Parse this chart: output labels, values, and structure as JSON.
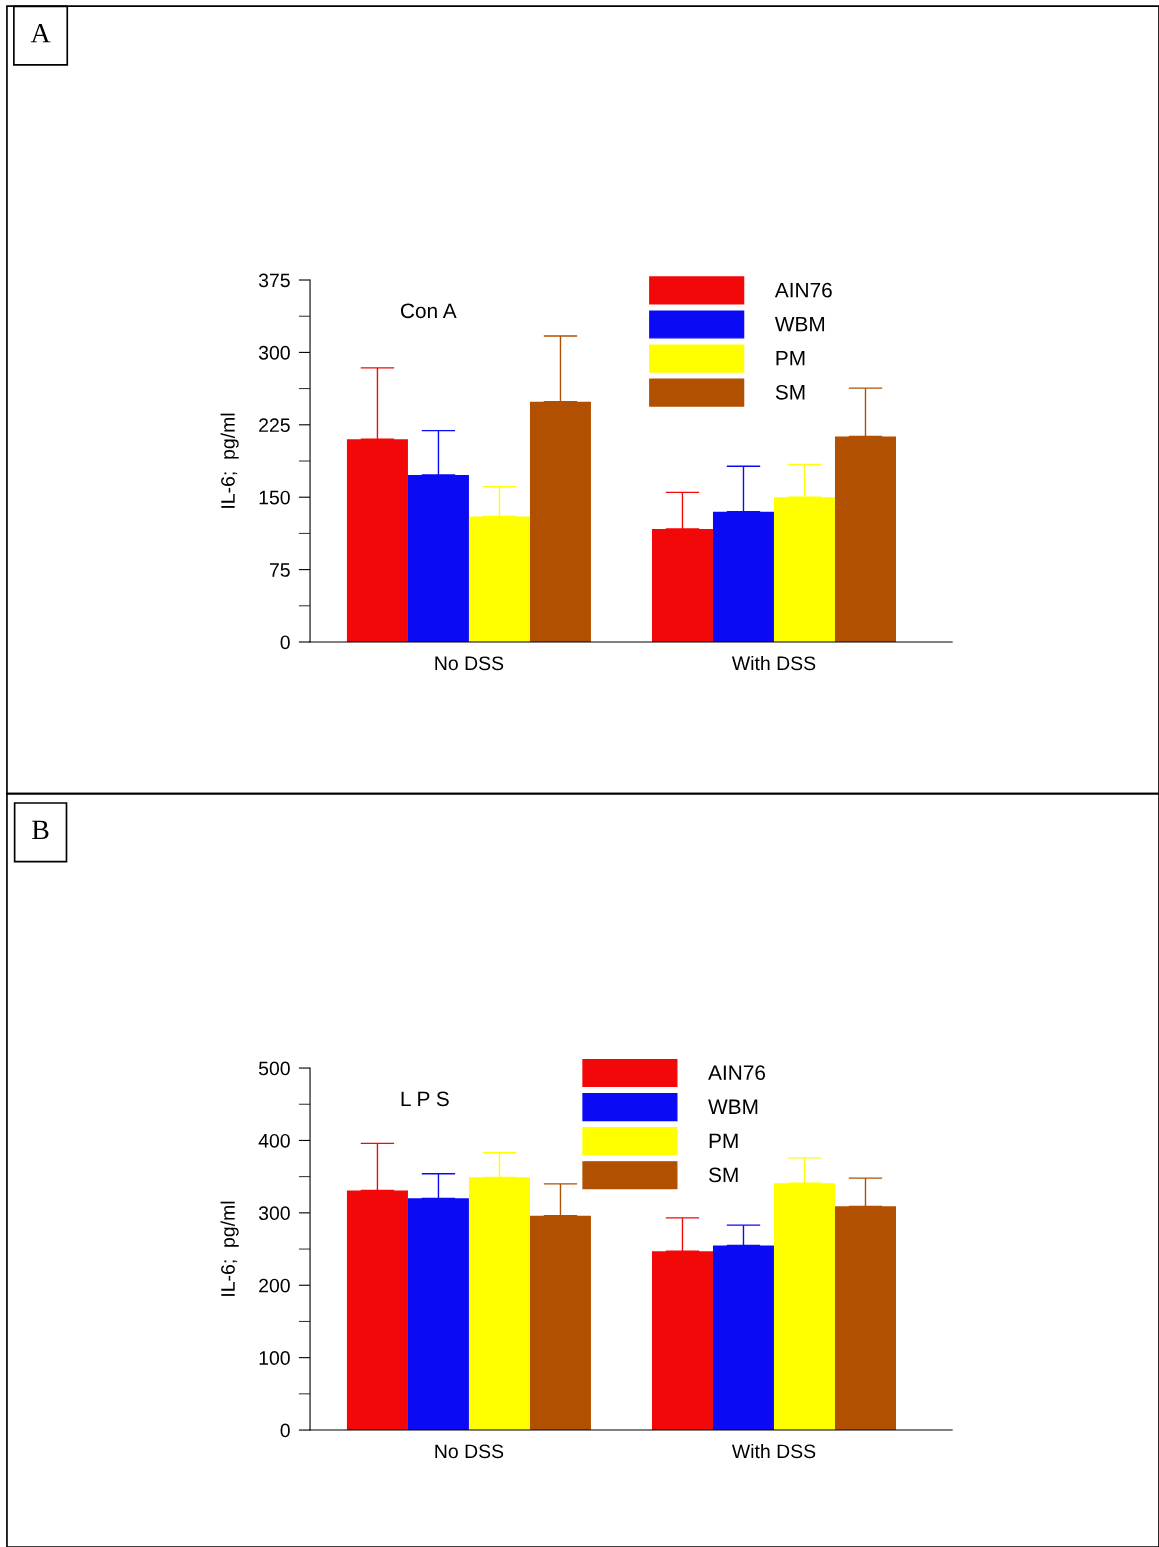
{
  "chart_data": [
    {
      "type": "bar",
      "title": "Con A",
      "ylabel": "IL-6;  pg/ml",
      "categories": [
        "No DSS",
        "With DSS"
      ],
      "ylim": [
        0,
        375
      ],
      "yticks": [
        0,
        75,
        150,
        225,
        300,
        375
      ],
      "legend": "top right",
      "grid": false,
      "annotations": [
        "A"
      ],
      "series": [
        {
          "name": "AIN76",
          "color": "#f20808",
          "values": [
            210,
            117
          ],
          "errors": [
            [
              210,
              284
            ],
            [
              117,
              155
            ]
          ]
        },
        {
          "name": "WBM",
          "color": "#0a0af5",
          "values": [
            173,
            135
          ],
          "errors": [
            [
              173,
              219
            ],
            [
              135,
              182
            ]
          ]
        },
        {
          "name": "PM",
          "color": "#ffff00",
          "values": [
            130,
            150
          ],
          "errors": [
            [
              130,
              161
            ],
            [
              150,
              184
            ]
          ]
        },
        {
          "name": "SM",
          "color": "#b05000",
          "values": [
            249,
            213
          ],
          "errors": [
            [
              249,
              317
            ],
            [
              213,
              263
            ]
          ]
        }
      ]
    },
    {
      "type": "bar",
      "title": "L P S",
      "ylabel": "IL-6;  pg/ml",
      "categories": [
        "No DSS",
        "With DSS"
      ],
      "ylim": [
        0,
        500
      ],
      "yticks": [
        0,
        100,
        200,
        300,
        400,
        500
      ],
      "legend": "top right",
      "grid": false,
      "annotations": [
        "B"
      ],
      "series": [
        {
          "name": "AIN76",
          "color": "#f20808",
          "values": [
            331,
            247
          ],
          "errors": [
            [
              331,
              396
            ],
            [
              247,
              293
            ]
          ]
        },
        {
          "name": "WBM",
          "color": "#0a0af5",
          "values": [
            320,
            255
          ],
          "errors": [
            [
              320,
              354
            ],
            [
              255,
              283
            ]
          ]
        },
        {
          "name": "PM",
          "color": "#ffff00",
          "values": [
            349,
            341
          ],
          "errors": [
            [
              349,
              383
            ],
            [
              341,
              376
            ]
          ]
        },
        {
          "name": "SM",
          "color": "#b05000",
          "values": [
            296,
            309
          ],
          "errors": [
            [
              296,
              340
            ],
            [
              309,
              348
            ]
          ]
        }
      ]
    }
  ]
}
